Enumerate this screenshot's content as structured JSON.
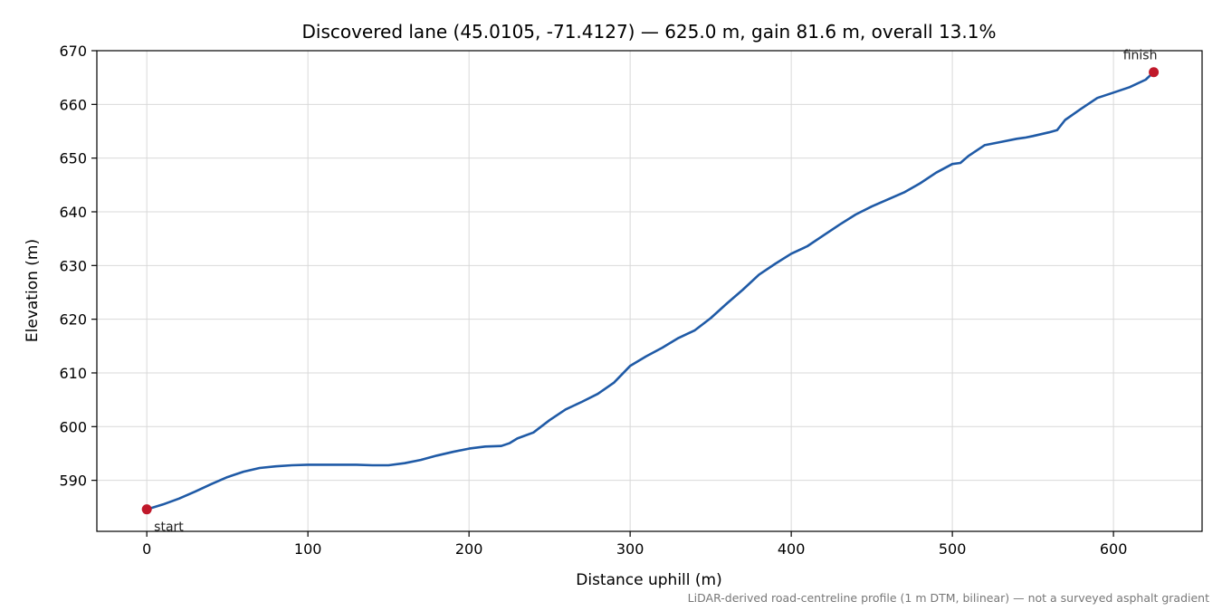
{
  "chart_data": {
    "type": "line",
    "title": "Discovered lane (45.0105, -71.4127) — 625.0 m, gain 81.6 m, overall 13.1%",
    "xlabel": "Distance uphill (m)",
    "ylabel": "Elevation (m)",
    "xlim": [
      -31,
      655
    ],
    "ylim": [
      580.5,
      670
    ],
    "xticks": [
      0,
      100,
      200,
      300,
      400,
      500,
      600
    ],
    "yticks": [
      590,
      600,
      610,
      620,
      630,
      640,
      650,
      660,
      670
    ],
    "grid": true,
    "line_color": "#1f5aa6",
    "marker_color": "#c0182a",
    "series": [
      {
        "x": [
          0,
          10,
          20,
          30,
          40,
          50,
          60,
          70,
          80,
          90,
          100,
          110,
          120,
          130,
          140,
          150,
          160,
          170,
          180,
          190,
          200,
          210,
          220,
          225,
          230,
          240,
          250,
          260,
          270,
          280,
          290,
          300,
          310,
          320,
          330,
          340,
          350,
          360,
          370,
          380,
          390,
          400,
          410,
          420,
          430,
          440,
          450,
          460,
          470,
          480,
          490,
          500,
          505,
          510,
          520,
          530,
          540,
          545,
          550,
          560,
          565,
          570,
          580,
          590,
          600,
          610,
          620,
          625
        ],
        "y": [
          584.6,
          585.5,
          586.6,
          587.9,
          589.3,
          590.6,
          591.6,
          592.3,
          592.6,
          592.8,
          592.9,
          592.9,
          592.9,
          592.9,
          592.8,
          592.8,
          593.2,
          593.8,
          594.6,
          595.3,
          595.9,
          596.3,
          596.4,
          596.9,
          597.8,
          598.9,
          601.2,
          603.2,
          604.6,
          606.1,
          608.2,
          611.3,
          613.1,
          614.7,
          616.5,
          617.9,
          620.2,
          622.9,
          625.5,
          628.3,
          630.3,
          632.2,
          633.6,
          635.6,
          637.6,
          639.5,
          641.0,
          642.3,
          643.6,
          645.3,
          647.3,
          648.9,
          649.1,
          650.4,
          652.4,
          653.0,
          653.6,
          653.8,
          654.1,
          654.8,
          655.2,
          657.1,
          659.2,
          661.2,
          662.2,
          663.2,
          664.6,
          666.0
        ]
      }
    ],
    "annotations": [
      {
        "label": "start",
        "x": 0,
        "y": 584.6
      },
      {
        "label": "finish",
        "x": 625,
        "y": 666.0
      }
    ],
    "footnote": "LiDAR-derived road-centreline profile (1 m DTM, bilinear) — not a surveyed asphalt gradient"
  }
}
